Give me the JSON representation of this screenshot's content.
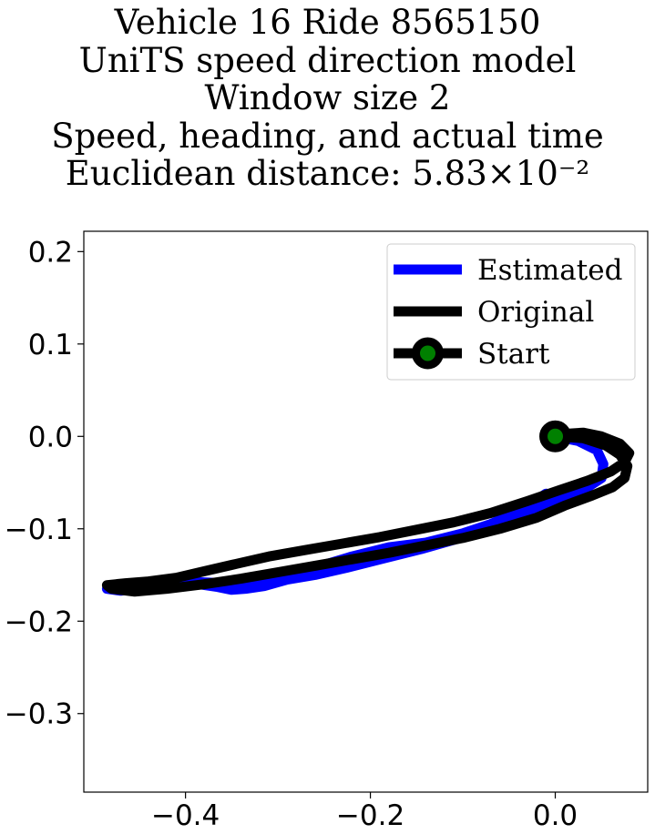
{
  "title_lines": [
    "Vehicle 16 Ride 8565150",
    "UniTS speed direction model",
    "Window size 2",
    "Speed, heading, and actual time",
    "Euclidean distance: 5.83×10⁻²"
  ],
  "chart_data": {
    "type": "line",
    "title": "Vehicle 16 Ride 8565150 / UniTS speed direction model / Window size 2 / Speed, heading, and actual time / Euclidean distance: 5.83×10⁻²",
    "xlabel": "",
    "ylabel": "",
    "xlim": [
      -0.51,
      0.1
    ],
    "ylim": [
      -0.385,
      0.222
    ],
    "xticks": [
      -0.4,
      -0.2,
      0.0
    ],
    "xtick_labels": [
      "−0.4",
      "−0.2",
      "0.0"
    ],
    "yticks": [
      0.2,
      0.1,
      0.0,
      -0.1,
      -0.2,
      -0.3
    ],
    "ytick_labels": [
      "0.2",
      "0.1",
      "0.0",
      "−0.1",
      "−0.2",
      "−0.3"
    ],
    "grid": false,
    "legend_position": "top-right",
    "series": [
      {
        "name": "Estimated",
        "color": "#0000ff",
        "x": [
          0.0,
          0.025,
          0.045,
          0.052,
          0.05,
          0.035,
          0.015,
          -0.01,
          -0.04,
          -0.075,
          -0.11,
          -0.145,
          -0.185,
          -0.225,
          -0.26,
          -0.29,
          -0.315,
          -0.335,
          -0.35,
          -0.365,
          -0.385,
          -0.41,
          -0.44,
          -0.47,
          -0.485,
          -0.46,
          -0.42,
          -0.38,
          -0.34,
          -0.3,
          -0.26,
          -0.22,
          -0.18,
          -0.14,
          -0.1,
          -0.07,
          -0.04,
          -0.01
        ],
        "y": [
          0.0,
          -0.005,
          -0.015,
          -0.03,
          -0.045,
          -0.055,
          -0.062,
          -0.072,
          -0.085,
          -0.098,
          -0.112,
          -0.122,
          -0.132,
          -0.142,
          -0.15,
          -0.155,
          -0.162,
          -0.165,
          -0.166,
          -0.163,
          -0.16,
          -0.16,
          -0.163,
          -0.167,
          -0.165,
          -0.16,
          -0.157,
          -0.158,
          -0.16,
          -0.155,
          -0.142,
          -0.13,
          -0.12,
          -0.115,
          -0.105,
          -0.095,
          -0.082,
          -0.062
        ]
      },
      {
        "name": "Original",
        "color": "#000000",
        "x": [
          0.0,
          0.03,
          0.055,
          0.07,
          0.078,
          0.075,
          0.062,
          0.04,
          0.01,
          -0.02,
          -0.06,
          -0.1,
          -0.14,
          -0.18,
          -0.22,
          -0.26,
          -0.3,
          -0.34,
          -0.38,
          -0.42,
          -0.455,
          -0.48,
          -0.485,
          -0.465,
          -0.44,
          -0.41,
          -0.38,
          -0.345,
          -0.31,
          -0.27,
          -0.23,
          -0.19,
          -0.15,
          -0.11,
          -0.07,
          -0.03,
          0.005,
          0.035,
          0.06,
          0.075,
          0.08,
          0.07,
          0.05,
          0.03,
          0.015
        ],
        "y": [
          0.0,
          -0.002,
          -0.01,
          -0.02,
          -0.032,
          -0.045,
          -0.055,
          -0.064,
          -0.075,
          -0.088,
          -0.1,
          -0.11,
          -0.118,
          -0.126,
          -0.133,
          -0.14,
          -0.147,
          -0.154,
          -0.16,
          -0.165,
          -0.168,
          -0.165,
          -0.161,
          -0.159,
          -0.157,
          -0.153,
          -0.146,
          -0.138,
          -0.13,
          -0.123,
          -0.116,
          -0.109,
          -0.101,
          -0.093,
          -0.083,
          -0.07,
          -0.058,
          -0.048,
          -0.038,
          -0.028,
          -0.018,
          -0.008,
          0.0,
          0.004,
          0.003
        ]
      }
    ],
    "start_marker": {
      "name": "Start",
      "x": 0.0,
      "y": 0.0,
      "edge_color": "#000000",
      "face_color": "#008000"
    }
  }
}
